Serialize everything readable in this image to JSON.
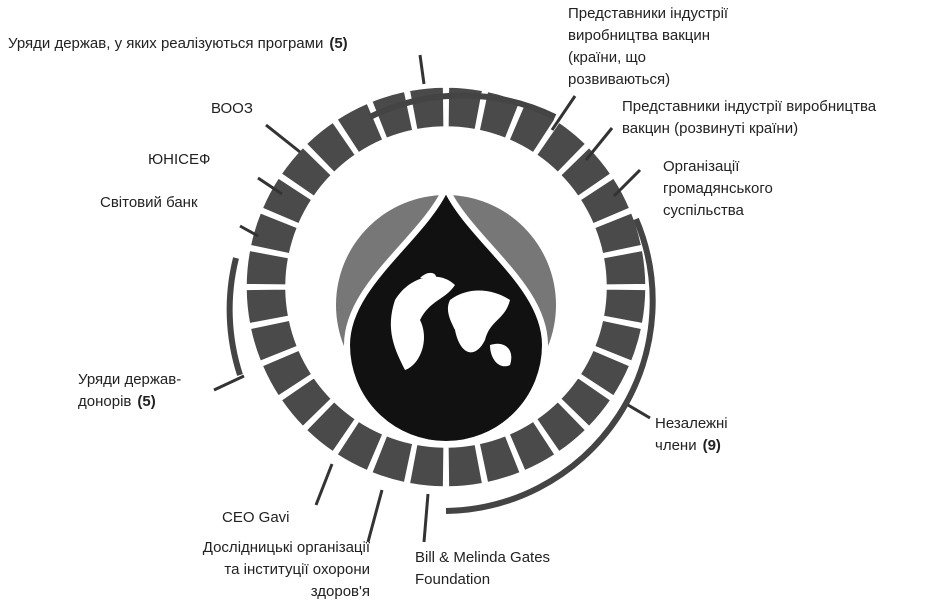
{
  "nodes": [
    {
      "lines": [
        "Уряди держав, у яких реалізуються програми"
      ],
      "count": "(5)"
    },
    {
      "lines": [
        "ВООЗ"
      ]
    },
    {
      "lines": [
        "ЮНІСЕФ"
      ]
    },
    {
      "lines": [
        "Світовий банк"
      ]
    },
    {
      "lines": [
        "Представники індустрії",
        "виробництва вакцин",
        "(країни, що",
        "розвиваються)"
      ]
    },
    {
      "lines": [
        "Представники індустрії виробництва",
        "вакцин (розвинуті країни)"
      ]
    },
    {
      "lines": [
        "Організації",
        "громадянського",
        "суспільства"
      ]
    },
    {
      "lines": [
        "Уряди держав-",
        "донорів"
      ],
      "count": "(5)"
    },
    {
      "lines": [
        "Незалежні",
        "члени"
      ],
      "count": "(9)"
    },
    {
      "lines": [
        "CEO Gavi"
      ]
    },
    {
      "lines": [
        "Дослідницькі організації",
        "та інституції охорони",
        "здоров'я"
      ]
    },
    {
      "lines": [
        "Bill & Melinda Gates",
        "Foundation"
      ]
    }
  ]
}
